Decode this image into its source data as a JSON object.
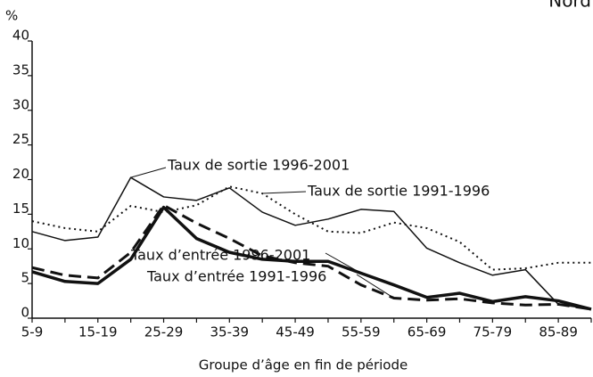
{
  "chart_data": {
    "type": "line",
    "title": "Nord",
    "y_label": "%",
    "x_label": "Groupe d’âge en fin de période",
    "categories": [
      "5-9",
      null,
      "15-19",
      null,
      "25-29",
      null,
      "35-39",
      null,
      "45-49",
      null,
      "55-59",
      null,
      "65-69",
      null,
      "75-79",
      null,
      "85-89",
      null
    ],
    "ylim": [
      0,
      40
    ],
    "yticks": [
      0,
      5,
      10,
      15,
      20,
      25,
      30,
      35,
      40
    ],
    "grid": false,
    "series": [
      {
        "name": "Taux de sortie 1996-2001",
        "color": "#111111",
        "dash": "solid",
        "width": 1.5,
        "values": [
          12.5,
          11.2,
          11.7,
          20.3,
          17.5,
          17,
          18.8,
          15.3,
          13.4,
          14.3,
          15.7,
          15.4,
          10.1,
          8,
          6.2,
          7,
          2,
          1.3
        ]
      },
      {
        "name": "Taux de sortie 1991-1996",
        "color": "#111111",
        "dash": "dotted",
        "width": 2,
        "values": [
          14,
          13,
          12.5,
          16.2,
          15.3,
          16.3,
          19,
          18,
          15,
          12.5,
          12.3,
          13.8,
          13,
          11,
          7,
          7.2,
          8,
          8
        ]
      },
      {
        "name": "Taux d’entrée 1996-2001",
        "color": "#111111",
        "dash": "solid",
        "width": 3.5,
        "values": [
          6.7,
          5.3,
          5,
          8.5,
          16,
          11.5,
          9.5,
          8.5,
          8.2,
          8.2,
          6.5,
          4.8,
          3,
          3.6,
          2.4,
          3.1,
          2.5,
          1.3
        ]
      },
      {
        "name": "Taux d’entrée 1991-1996",
        "color": "#111111",
        "dash": "dashed",
        "width": 3,
        "values": [
          7.3,
          6.2,
          5.8,
          9.5,
          16.3,
          13.7,
          11.5,
          9,
          8,
          7.5,
          4.8,
          2.9,
          2.6,
          2.8,
          2.2,
          1.9,
          2,
          1.3
        ]
      }
    ]
  }
}
